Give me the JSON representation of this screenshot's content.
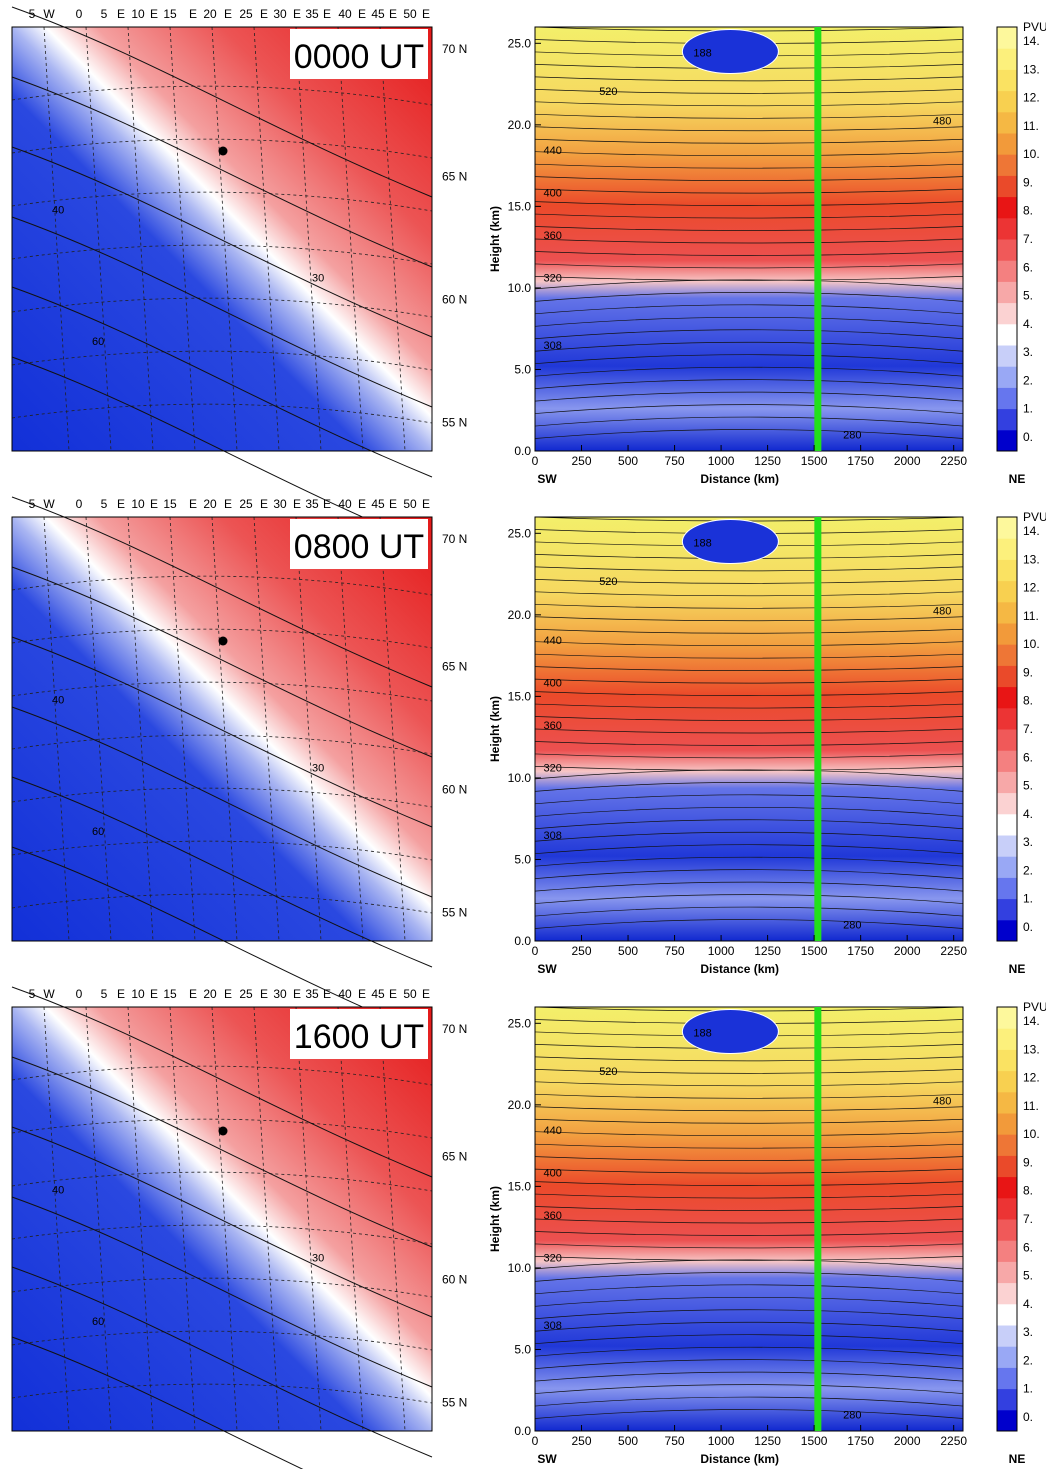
{
  "map_panel": {
    "lon_labels": [
      "5",
      "W",
      "0",
      "5",
      "E",
      "10",
      "E",
      "15",
      "E",
      "20",
      "E",
      "25",
      "E",
      "30",
      "E",
      "35",
      "E",
      "40",
      "E",
      "45",
      "E",
      "50",
      "E"
    ],
    "lat_labels": [
      "70 N",
      "65 N",
      "60 N",
      "55 N"
    ],
    "contour_labels": [
      "40",
      "60",
      "30"
    ]
  },
  "panels": [
    {
      "time_label": "0000 UT"
    },
    {
      "time_label": "0800 UT"
    },
    {
      "time_label": "1600 UT"
    }
  ],
  "cross_section": {
    "left_end": "SW",
    "right_end": "NE",
    "theta_labels": [
      "280",
      "308",
      "320",
      "360",
      "400",
      "440",
      "480",
      "520",
      "188"
    ]
  },
  "colorbar": {
    "unit": "PVU",
    "tick_labels": [
      "14.",
      "13.",
      "12.",
      "11.",
      "10.",
      "9.",
      "8.",
      "7.",
      "6.",
      "5.",
      "4.",
      "3.",
      "2.",
      "1.",
      "0."
    ],
    "colors": [
      "#0000cc",
      "#3340e0",
      "#6676ee",
      "#99a8f5",
      "#c8cff9",
      "#ffffff",
      "#fbd2d2",
      "#f7a8a8",
      "#f48080",
      "#f05959",
      "#ec3434",
      "#e81515",
      "#ea4a2a",
      "#ee7636",
      "#f29a3a",
      "#f5b844",
      "#f8d050",
      "#fae262",
      "#fcf07c",
      "#fdf89c"
    ]
  },
  "chart_data": [
    {
      "type": "heatmap",
      "title": "",
      "xlabel": "Distance (km)",
      "ylabel": "Height (km)",
      "xlim": [
        0,
        2300
      ],
      "ylim": [
        0,
        26
      ],
      "x_ticks": [
        0,
        250,
        500,
        750,
        1000,
        1250,
        1500,
        1750,
        2000,
        2250
      ],
      "y_ticks": [
        "0.0",
        "5.0",
        "10.0",
        "15.0",
        "20.0",
        "25.0"
      ],
      "colorbar_unit": "PVU",
      "colorbar_range": [
        0,
        15
      ],
      "vertical_line_x": 1520,
      "annotation": "0000 UT"
    },
    {
      "type": "heatmap",
      "title": "",
      "xlabel": "Distance (km)",
      "ylabel": "Height (km)",
      "xlim": [
        0,
        2300
      ],
      "ylim": [
        0,
        26
      ],
      "x_ticks": [
        0,
        250,
        500,
        750,
        1000,
        1250,
        1500,
        1750,
        2000,
        2250
      ],
      "y_ticks": [
        "0.0",
        "5.0",
        "10.0",
        "15.0",
        "20.0",
        "25.0"
      ],
      "colorbar_unit": "PVU",
      "colorbar_range": [
        0,
        15
      ],
      "vertical_line_x": 1520,
      "annotation": "0800 UT"
    },
    {
      "type": "heatmap",
      "title": "",
      "xlabel": "Distance (km)",
      "ylabel": "Height (km)",
      "xlim": [
        0,
        2300
      ],
      "ylim": [
        0,
        26
      ],
      "x_ticks": [
        0,
        250,
        500,
        750,
        1000,
        1250,
        1500,
        1750,
        2000,
        2250
      ],
      "y_ticks": [
        "0.0",
        "5.0",
        "10.0",
        "15.0",
        "20.0",
        "25.0"
      ],
      "colorbar_unit": "PVU",
      "colorbar_range": [
        0,
        15
      ],
      "vertical_line_x": 1520,
      "annotation": "1600 UT"
    }
  ]
}
